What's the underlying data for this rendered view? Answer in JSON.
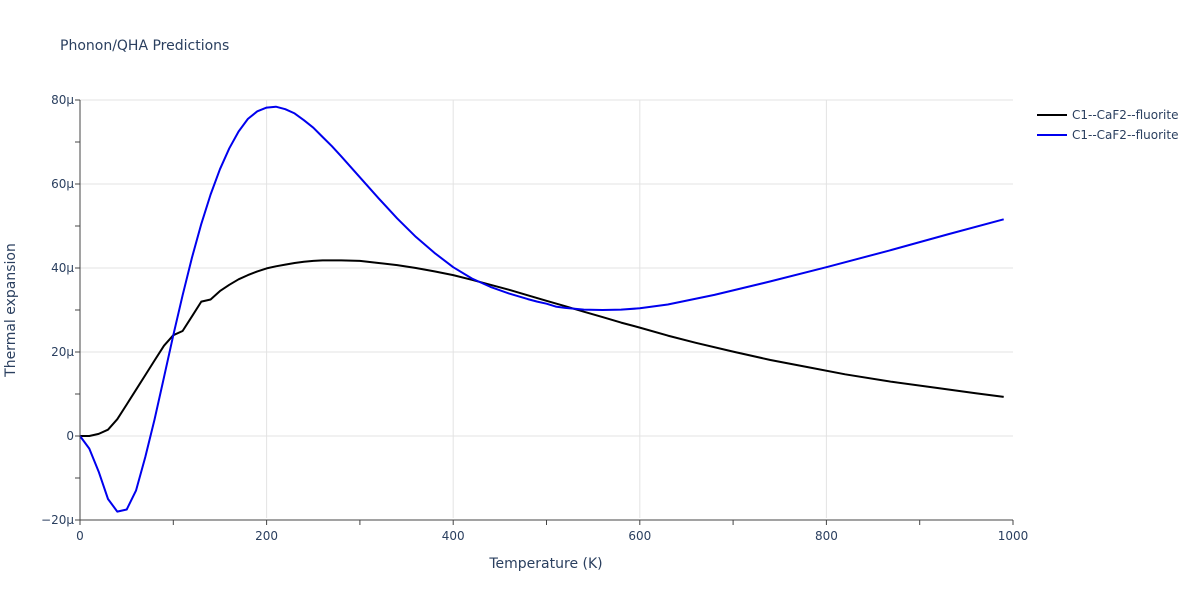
{
  "chart_data": {
    "type": "line",
    "title": "Phonon/QHA Predictions",
    "xlabel": "Temperature (K)",
    "ylabel": "Thermal expansion",
    "xlim": [
      0,
      1000
    ],
    "ylim": [
      -20,
      80
    ],
    "xticks": [
      0,
      200,
      400,
      600,
      800,
      1000
    ],
    "xtick_labels": [
      "0",
      "200",
      "400",
      "600",
      "800",
      "1000"
    ],
    "yticks": [
      -20,
      0,
      20,
      40,
      60,
      80
    ],
    "ytick_labels": [
      "−20μ",
      "0",
      "20μ",
      "40μ",
      "60μ",
      "80μ"
    ],
    "legend_position": "top-right",
    "series": [
      {
        "name": "C1--CaF2--fluorite",
        "color": "#000000",
        "x": [
          0,
          10,
          20,
          30,
          40,
          50,
          60,
          70,
          80,
          90,
          100,
          110,
          120,
          130,
          140,
          150,
          160,
          170,
          180,
          190,
          200,
          210,
          220,
          230,
          240,
          250,
          260,
          270,
          280,
          300,
          320,
          340,
          360,
          380,
          400,
          420,
          440,
          460,
          480,
          500,
          520,
          540,
          560,
          580,
          600,
          630,
          660,
          700,
          740,
          780,
          820,
          870,
          920,
          960,
          990
        ],
        "y": [
          0,
          0,
          0.5,
          1.5,
          4,
          7.5,
          11,
          14.5,
          18,
          21.5,
          24,
          25,
          28.5,
          32,
          32.5,
          34.5,
          36,
          37.3,
          38.3,
          39.2,
          39.9,
          40.4,
          40.8,
          41.2,
          41.5,
          41.7,
          41.8,
          41.8,
          41.8,
          41.7,
          41.2,
          40.7,
          40,
          39.2,
          38.3,
          37.2,
          36,
          34.8,
          33.5,
          32.2,
          30.9,
          29.6,
          28.3,
          27,
          25.8,
          23.9,
          22.2,
          20.1,
          18.1,
          16.4,
          14.7,
          12.9,
          11.4,
          10.2,
          9.3
        ]
      },
      {
        "name": "C1--CaF2--fluorite",
        "color": "#0000ee",
        "x": [
          0,
          10,
          20,
          30,
          40,
          50,
          60,
          70,
          80,
          90,
          100,
          110,
          120,
          130,
          140,
          150,
          160,
          170,
          180,
          190,
          200,
          210,
          220,
          230,
          240,
          250,
          260,
          270,
          280,
          300,
          320,
          340,
          360,
          380,
          400,
          420,
          440,
          460,
          480,
          490,
          500,
          510,
          520,
          540,
          560,
          580,
          600,
          630,
          680,
          740,
          800,
          870,
          930,
          990
        ],
        "y": [
          0,
          -3,
          -8.5,
          -15,
          -18,
          -17.5,
          -13,
          -5,
          4,
          14,
          24,
          33.5,
          42.5,
          50.5,
          57.5,
          63.5,
          68.5,
          72.5,
          75.5,
          77.3,
          78.2,
          78.4,
          77.8,
          76.8,
          75.2,
          73.4,
          71.2,
          69,
          66.6,
          61.6,
          56.6,
          51.8,
          47.4,
          43.6,
          40.2,
          37.5,
          35.5,
          33.9,
          32.6,
          32,
          31.5,
          30.8,
          30.5,
          30.1,
          30,
          30.1,
          30.4,
          31.3,
          33.6,
          36.8,
          40.2,
          44.3,
          48,
          51.6
        ]
      }
    ]
  }
}
